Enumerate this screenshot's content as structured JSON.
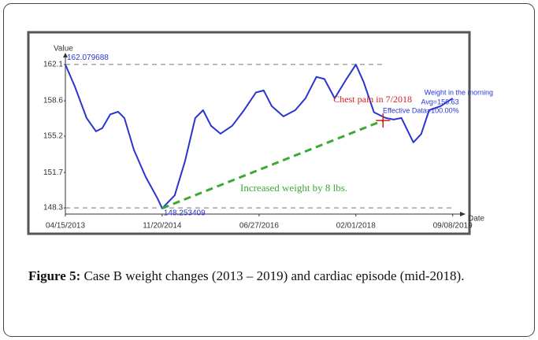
{
  "chart_data": {
    "type": "line",
    "y_axis_label": "Value",
    "x_axis_label": "Date",
    "x": [
      "04/15/2013",
      "06/11/2013",
      "08/21/2013",
      "10/17/2013",
      "11/24/2013",
      "01/11/2014",
      "02/27/2014",
      "04/06/2014",
      "06/02/2014",
      "08/13/2014",
      "10/23/2014",
      "11/20/2014",
      "02/04/2015",
      "04/07/2015",
      "06/08/2015",
      "07/25/2015",
      "09/11/2015",
      "11/07/2015",
      "01/17/2016",
      "03/28/2016",
      "06/08/2016",
      "07/25/2016",
      "09/11/2016",
      "11/21/2016",
      "01/31/2017",
      "04/03/2017",
      "06/08/2017",
      "07/26/2017",
      "09/26/2017",
      "12/06/2017",
      "02/01/2018",
      "03/20/2018",
      "05/21/2018",
      "07/31/2018",
      "09/17/2018",
      "11/03/2018",
      "01/14/2019",
      "03/02/2019",
      "04/19/2019",
      "06/29/2019",
      "09/08/2019"
    ],
    "series": [
      {
        "name": "Weight in the morning",
        "color": "#2a35d0",
        "values": [
          162.08,
          159.98,
          156.95,
          155.66,
          155.97,
          157.3,
          157.55,
          156.95,
          153.9,
          151.27,
          149.2,
          148.25,
          149.5,
          152.8,
          156.95,
          157.7,
          156.2,
          155.43,
          156.2,
          157.7,
          159.4,
          159.6,
          158.1,
          157.1,
          157.7,
          158.84,
          160.9,
          160.7,
          158.84,
          160.7,
          162.08,
          160.4,
          157.5,
          156.95,
          156.8,
          156.95,
          154.6,
          155.4,
          157.7,
          158.1,
          158.84
        ]
      }
    ],
    "stats": [
      "Avg=156.63",
      "Effective Data=100.00%"
    ],
    "max": {
      "x": "04/15/2013",
      "value": 162.079688
    },
    "min": {
      "x": "11/20/2014",
      "value": 148.253409
    },
    "event": {
      "label": "Chest pain in 7/2018",
      "x": "07/15/2018",
      "y": 156.7,
      "color": "#d42020"
    },
    "trend_label": "Increased weight by 8 lbs.",
    "trend_color": "#3aaa35",
    "xlim": [
      "04/15/2013",
      "11/01/2019"
    ],
    "xticks": [
      "04/15/2013",
      "11/20/2014",
      "06/27/2016",
      "02/01/2018",
      "09/08/2019"
    ],
    "ylim": [
      147.7,
      163.0
    ],
    "yticks": [
      162.1,
      158.6,
      155.2,
      151.7,
      148.3
    ]
  },
  "caption": {
    "label": "Figure 5:",
    "text": " Case B weight changes (2013 – 2019) and cardiac episode (mid-2018)."
  }
}
